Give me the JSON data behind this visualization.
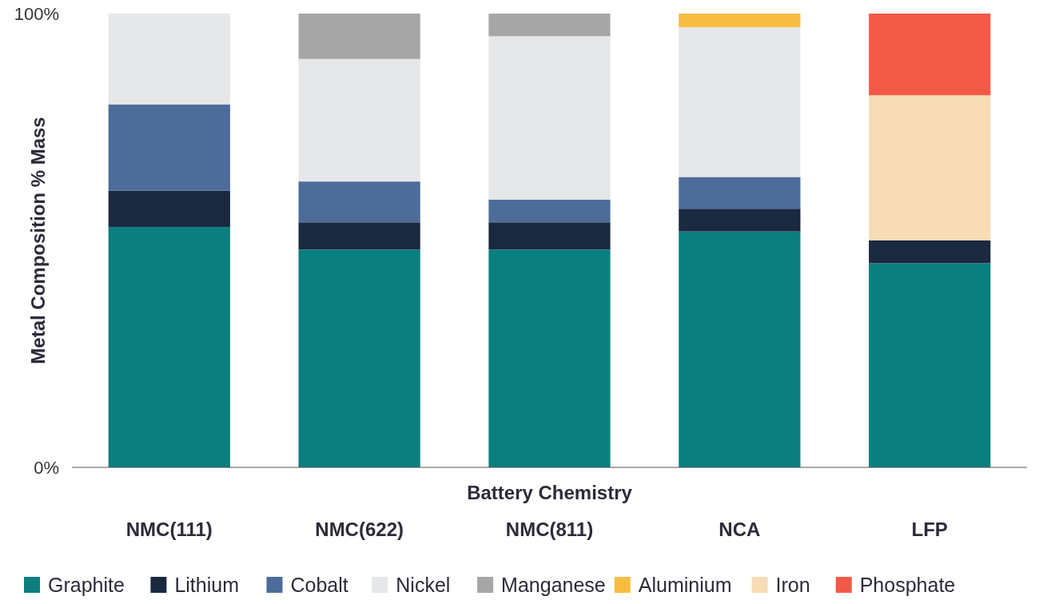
{
  "chart_data": {
    "type": "bar",
    "stacked": true,
    "xlabel": "Battery Chemistry",
    "ylabel": "Metal Composition % Mass",
    "categories": [
      "NMC(111)",
      "NMC(622)",
      "NMC(811)",
      "NCA",
      "LFP"
    ],
    "series": [
      {
        "name": "Graphite",
        "color": "#0b7e7e",
        "values": [
          53,
          48,
          48,
          52,
          45
        ]
      },
      {
        "name": "Lithium",
        "color": "#1a2840",
        "values": [
          8,
          6,
          6,
          5,
          5
        ]
      },
      {
        "name": "Cobalt",
        "color": "#4d6c99",
        "values": [
          19,
          9,
          5,
          7,
          null
        ]
      },
      {
        "name": "Nickel",
        "color": "#e6e7e9",
        "values": [
          20,
          27,
          36,
          33,
          null
        ]
      },
      {
        "name": "Manganese",
        "color": "#a6a6a6",
        "values": [
          null,
          10,
          5,
          null,
          null
        ]
      },
      {
        "name": "Aluminium",
        "color": "#f7bd42",
        "values": [
          null,
          null,
          null,
          3,
          null
        ]
      },
      {
        "name": "Iron",
        "color": "#f8dcb5",
        "values": [
          null,
          null,
          null,
          null,
          32
        ]
      },
      {
        "name": "Phosphate",
        "color": "#f15a47",
        "values": [
          null,
          null,
          null,
          null,
          18
        ]
      }
    ],
    "ylim": [
      0,
      100
    ],
    "yticks": [
      {
        "value": 0,
        "label": "0%"
      },
      {
        "value": 100,
        "label": "100%"
      }
    ],
    "grid": false,
    "legend": "bottom"
  }
}
